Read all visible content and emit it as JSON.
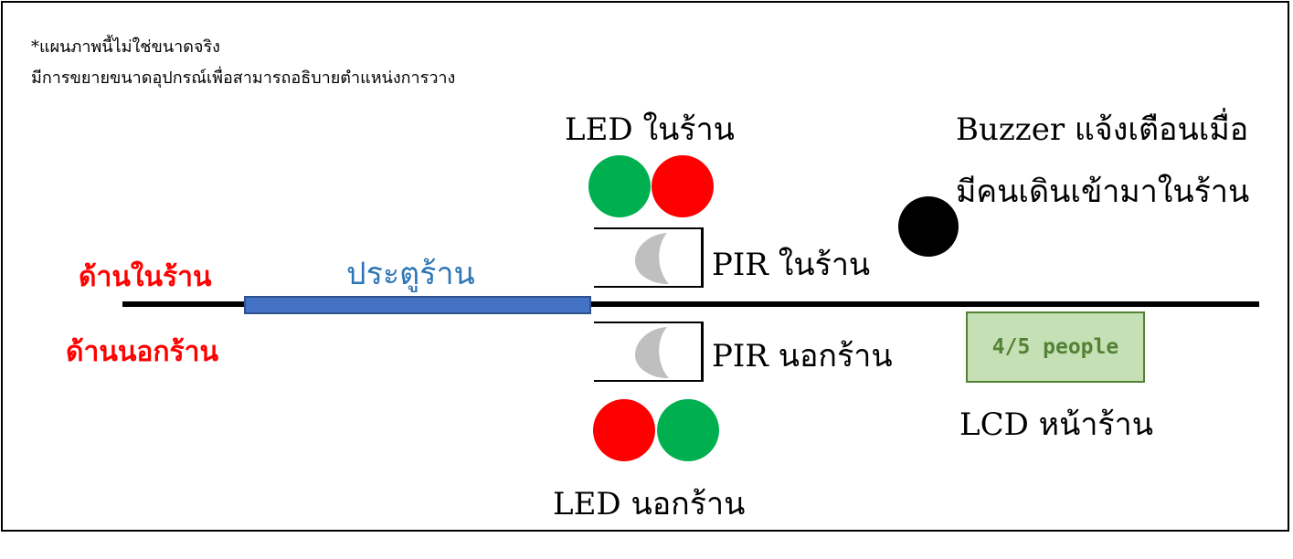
{
  "notes": {
    "line1": "*แผนภาพนี้ไม่ใช่ขนาดจริง",
    "line2": "มีการขยายขนาดอุปกรณ์เพื่อสามารถอธิบายตำแหน่งการวาง"
  },
  "sides": {
    "inside": "ด้านในร้าน",
    "outside": "ด้านนอกร้าน"
  },
  "door": {
    "label": "ประตูร้าน",
    "color": "#4472c4"
  },
  "led_inside": {
    "label": "LED ในร้าน",
    "colors": [
      "#00b050",
      "#ff0000"
    ]
  },
  "led_outside": {
    "label": "LED นอกร้าน",
    "colors": [
      "#ff0000",
      "#00b050"
    ]
  },
  "pir_inside": {
    "label": "PIR ในร้าน",
    "color": "#bfbfbf"
  },
  "pir_outside": {
    "label": "PIR นอกร้าน",
    "color": "#bfbfbf"
  },
  "buzzer": {
    "label_line1": "Buzzer แจ้งเตือนเมื่อ",
    "label_line2": "มีคนเดินเข้ามาในร้าน",
    "color": "#000000"
  },
  "lcd": {
    "display_text": "4/5 people",
    "label": "LCD หน้าร้าน",
    "background": "#c5e0b4",
    "text_color": "#548235"
  }
}
